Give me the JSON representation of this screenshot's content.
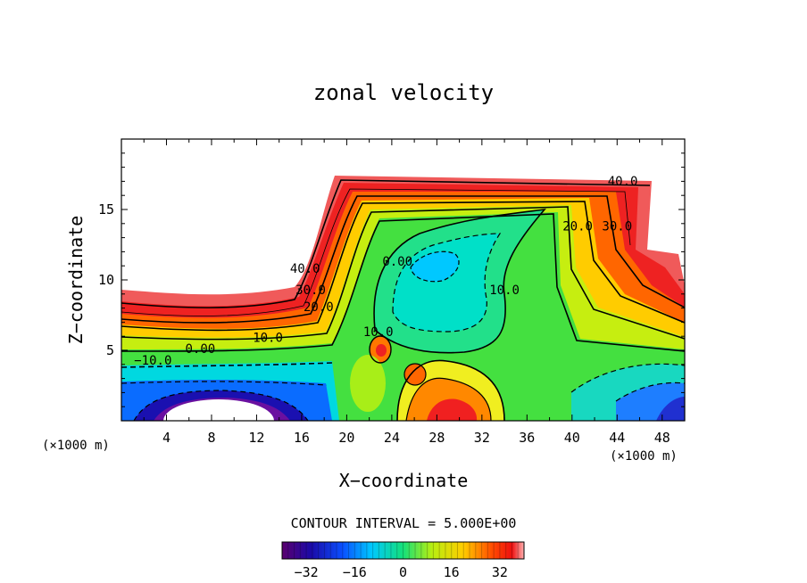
{
  "chart_data": {
    "type": "heatmap",
    "title": "zonal velocity",
    "xlabel": "X−coordinate",
    "ylabel": "Z−coordinate",
    "x_units": "(×1000 m)",
    "y_units": "(×1000 m)",
    "xlim": [
      0,
      50
    ],
    "ylim": [
      0,
      20
    ],
    "x_ticks": [
      4,
      8,
      12,
      16,
      20,
      24,
      28,
      32,
      36,
      40,
      44,
      48
    ],
    "x_tick_labels": [
      "4",
      "8",
      "12",
      "16",
      "20",
      "24",
      "28",
      "32",
      "36",
      "40",
      "44",
      "48"
    ],
    "y_ticks": [
      5,
      10,
      15
    ],
    "y_tick_labels": [
      "5",
      "10",
      "15"
    ],
    "contour_interval_label": "CONTOUR INTERVAL = 5.000E+00",
    "colorbar": {
      "range": [
        -40,
        40
      ],
      "ticks": [
        -32,
        -16,
        0,
        16,
        32
      ],
      "tick_labels": [
        "−32",
        "−16",
        "0",
        "16",
        "32"
      ]
    },
    "contour_labels": [
      {
        "text": "40.0",
        "x": 44.5,
        "z": 16.7
      },
      {
        "text": "30.0",
        "x": 44.0,
        "z": 13.5
      },
      {
        "text": "20.0",
        "x": 40.5,
        "z": 13.5
      },
      {
        "text": "40.0",
        "x": 16.3,
        "z": 10.5
      },
      {
        "text": "30.0",
        "x": 16.8,
        "z": 9.0
      },
      {
        "text": "20.0",
        "x": 17.5,
        "z": 7.8
      },
      {
        "text": "10.0",
        "x": 13.0,
        "z": 5.6
      },
      {
        "text": "0.00",
        "x": 7.0,
        "z": 4.8
      },
      {
        "text": "−10.0",
        "x": 2.8,
        "z": 4.0
      },
      {
        "text": "0.00",
        "x": 24.5,
        "z": 11.0
      },
      {
        "text": "10.0",
        "x": 34.0,
        "z": 9.0
      },
      {
        "text": "10.0",
        "x": 22.8,
        "z": 6.0
      }
    ],
    "regions": {
      "upper_jet_max": 40,
      "surface_low_min": -40,
      "interior_low_center": [
        27.5,
        11.0
      ],
      "surface_jet_center": [
        30.0,
        1.5
      ]
    }
  }
}
